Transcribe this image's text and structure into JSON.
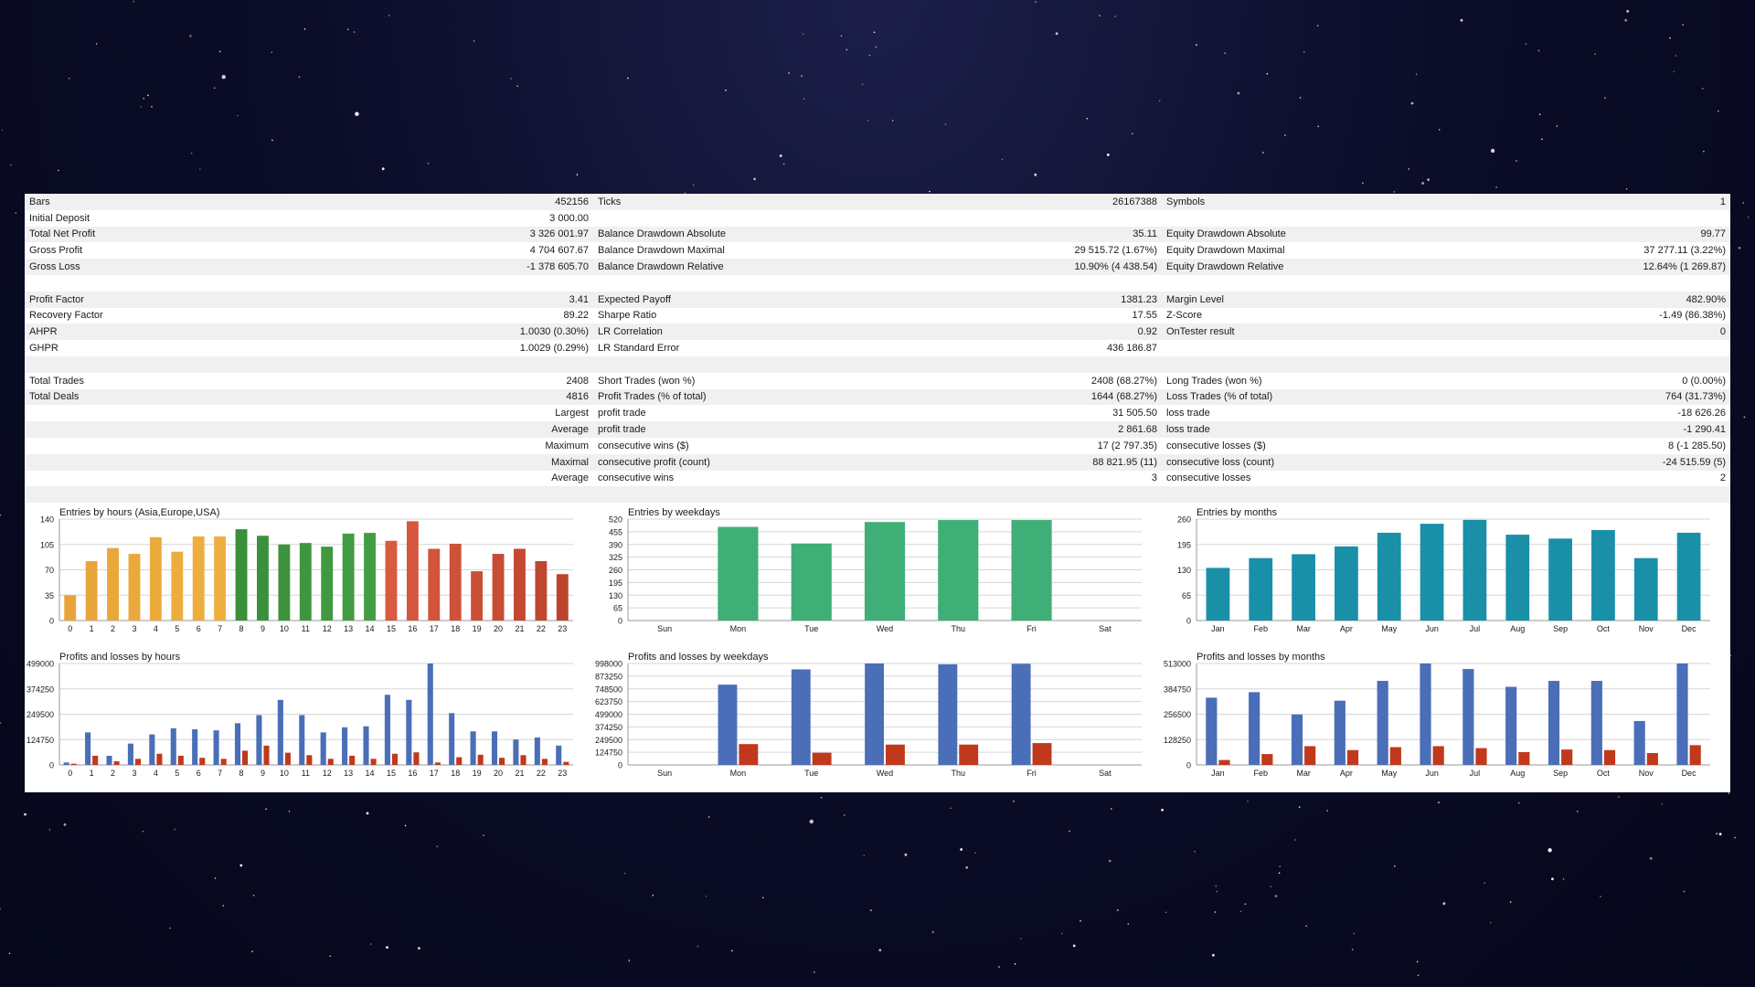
{
  "stats_rows": [
    {
      "shade": true,
      "cells": [
        [
          "Bars",
          "452156"
        ],
        [
          "Ticks",
          "26167388"
        ],
        [
          "Symbols",
          "1"
        ]
      ]
    },
    {
      "shade": false,
      "cells": [
        [
          "Initial Deposit",
          "3 000.00"
        ],
        [
          "",
          ""
        ],
        [
          "",
          ""
        ]
      ]
    },
    {
      "shade": true,
      "cells": [
        [
          "Total Net Profit",
          "3 326 001.97"
        ],
        [
          "Balance Drawdown Absolute",
          "35.11"
        ],
        [
          "Equity Drawdown Absolute",
          "99.77"
        ]
      ]
    },
    {
      "shade": false,
      "cells": [
        [
          "Gross Profit",
          "4 704 607.67"
        ],
        [
          "Balance Drawdown Maximal",
          "29 515.72 (1.67%)"
        ],
        [
          "Equity Drawdown Maximal",
          "37 277.11 (3.22%)"
        ]
      ]
    },
    {
      "shade": true,
      "cells": [
        [
          "Gross Loss",
          "-1 378 605.70"
        ],
        [
          "Balance Drawdown Relative",
          "10.90% (4 438.54)"
        ],
        [
          "Equity Drawdown Relative",
          "12.64% (1 269.87)"
        ]
      ]
    },
    {
      "shade": false,
      "cells": [
        [
          "",
          ""
        ],
        [
          "",
          ""
        ],
        [
          "",
          ""
        ]
      ]
    },
    {
      "shade": true,
      "cells": [
        [
          "Profit Factor",
          "3.41"
        ],
        [
          "Expected Payoff",
          "1381.23"
        ],
        [
          "Margin Level",
          "482.90%"
        ]
      ]
    },
    {
      "shade": false,
      "cells": [
        [
          "Recovery Factor",
          "89.22"
        ],
        [
          "Sharpe Ratio",
          "17.55"
        ],
        [
          "Z-Score",
          "-1.49 (86.38%)"
        ]
      ]
    },
    {
      "shade": true,
      "cells": [
        [
          "AHPR",
          "1.0030 (0.30%)"
        ],
        [
          "LR Correlation",
          "0.92"
        ],
        [
          "OnTester result",
          "0"
        ]
      ]
    },
    {
      "shade": false,
      "cells": [
        [
          "GHPR",
          "1.0029 (0.29%)"
        ],
        [
          "LR Standard Error",
          "436 186.87"
        ],
        [
          "",
          ""
        ]
      ]
    },
    {
      "shade": true,
      "cells": [
        [
          "",
          ""
        ],
        [
          "",
          ""
        ],
        [
          "",
          ""
        ]
      ]
    },
    {
      "shade": false,
      "cells": [
        [
          "Total Trades",
          "2408"
        ],
        [
          "Short Trades (won %)",
          "2408 (68.27%)"
        ],
        [
          "Long Trades (won %)",
          "0 (0.00%)"
        ]
      ]
    },
    {
      "shade": true,
      "cells": [
        [
          "Total Deals",
          "4816"
        ],
        [
          "Profit Trades (% of total)",
          "1644 (68.27%)"
        ],
        [
          "Loss Trades (% of total)",
          "764 (31.73%)"
        ]
      ]
    },
    {
      "shade": false,
      "first_right": true,
      "cells": [
        [
          "Largest",
          ""
        ],
        [
          "profit trade",
          "31 505.50"
        ],
        [
          "loss trade",
          "-18 626.26"
        ]
      ]
    },
    {
      "shade": true,
      "first_right": true,
      "cells": [
        [
          "Average",
          ""
        ],
        [
          "profit trade",
          "2 861.68"
        ],
        [
          "loss trade",
          "-1 290.41"
        ]
      ]
    },
    {
      "shade": false,
      "first_right": true,
      "cells": [
        [
          "Maximum",
          ""
        ],
        [
          "consecutive wins ($)",
          "17 (2 797.35)"
        ],
        [
          "consecutive losses ($)",
          "8 (-1 285.50)"
        ]
      ]
    },
    {
      "shade": true,
      "first_right": true,
      "cells": [
        [
          "Maximal",
          ""
        ],
        [
          "consecutive profit (count)",
          "88 821.95 (11)"
        ],
        [
          "consecutive loss (count)",
          "-24 515.59 (5)"
        ]
      ]
    },
    {
      "shade": false,
      "first_right": true,
      "cells": [
        [
          "Average",
          ""
        ],
        [
          "consecutive wins",
          "3"
        ],
        [
          "consecutive losses",
          "2"
        ]
      ]
    },
    {
      "shade": true,
      "cells": [
        [
          "",
          ""
        ],
        [
          "",
          ""
        ],
        [
          "",
          ""
        ]
      ]
    }
  ],
  "colors": {
    "hours_gradient": [
      "#e8a33a",
      "#f0b13f",
      "#3a8f3a",
      "#44a044",
      "#b8412a",
      "#d95a40"
    ],
    "weekdays_green": "#3fae77",
    "months_teal": "#1a8fa8",
    "profit_blue": "#4a6fb8",
    "loss_red": "#c0391d"
  },
  "chart_data": [
    {
      "id": "entries_hours",
      "type": "bar",
      "title": "Entries by hours (Asia,Europe,USA)",
      "categories": [
        "0",
        "1",
        "2",
        "3",
        "4",
        "5",
        "6",
        "7",
        "8",
        "9",
        "10",
        "11",
        "12",
        "13",
        "14",
        "15",
        "16",
        "17",
        "18",
        "19",
        "20",
        "21",
        "22",
        "23"
      ],
      "values": [
        35,
        82,
        100,
        92,
        115,
        95,
        116,
        116,
        126,
        117,
        105,
        107,
        102,
        120,
        121,
        110,
        137,
        99,
        106,
        68,
        92,
        99,
        82,
        64
      ],
      "yticks": [
        "0",
        "35",
        "70",
        "105",
        "140"
      ],
      "ylim": [
        0,
        140
      ]
    },
    {
      "id": "entries_weekdays",
      "type": "bar",
      "title": "Entries by weekdays",
      "categories": [
        "Sun",
        "Mon",
        "Tue",
        "Wed",
        "Thu",
        "Fri",
        "Sat"
      ],
      "values": [
        0,
        480,
        395,
        505,
        515,
        515,
        0
      ],
      "yticks": [
        "0",
        "65",
        "130",
        "195",
        "260",
        "325",
        "390",
        "455",
        "520"
      ],
      "ylim": [
        0,
        520
      ]
    },
    {
      "id": "entries_months",
      "type": "bar",
      "title": "Entries by months",
      "categories": [
        "Jan",
        "Feb",
        "Mar",
        "Apr",
        "May",
        "Jun",
        "Jul",
        "Aug",
        "Sep",
        "Oct",
        "Nov",
        "Dec"
      ],
      "values": [
        135,
        160,
        170,
        190,
        225,
        248,
        258,
        220,
        210,
        232,
        160,
        225
      ],
      "yticks": [
        "0",
        "65",
        "130",
        "195",
        "260"
      ],
      "ylim": [
        0,
        260
      ]
    },
    {
      "id": "pl_hours",
      "type": "bar",
      "title": "Profits and losses by hours",
      "categories": [
        "0",
        "1",
        "2",
        "3",
        "4",
        "5",
        "6",
        "7",
        "8",
        "9",
        "10",
        "11",
        "12",
        "13",
        "14",
        "15",
        "16",
        "17",
        "18",
        "19",
        "20",
        "21",
        "22",
        "23"
      ],
      "series": [
        {
          "values": [
            12000,
            160000,
            45000,
            105000,
            150000,
            180000,
            175000,
            170000,
            205000,
            245000,
            320000,
            245000,
            160000,
            185000,
            190000,
            345000,
            320000,
            499000,
            255000,
            165000,
            165000,
            125000,
            135000,
            95000
          ]
        },
        {
          "values": [
            6000,
            45000,
            18000,
            30000,
            55000,
            45000,
            35000,
            30000,
            70000,
            95000,
            60000,
            48000,
            30000,
            45000,
            30000,
            55000,
            62000,
            12000,
            38000,
            50000,
            35000,
            48000,
            30000,
            15000
          ]
        }
      ],
      "yticks": [
        "0",
        "124750",
        "249500",
        "374250",
        "499000"
      ],
      "ylim": [
        0,
        499000
      ]
    },
    {
      "id": "pl_weekdays",
      "type": "bar",
      "title": "Profits and losses by weekdays",
      "categories": [
        "Sun",
        "Mon",
        "Tue",
        "Wed",
        "Thu",
        "Fri",
        "Sat"
      ],
      "series": [
        {
          "values": [
            0,
            790000,
            940000,
            998000,
            990000,
            995000,
            0
          ]
        },
        {
          "values": [
            0,
            205000,
            120000,
            200000,
            200000,
            215000,
            0
          ]
        }
      ],
      "yticks": [
        "0",
        "124750",
        "249500",
        "374250",
        "499000",
        "623750",
        "748500",
        "873250",
        "998000"
      ],
      "ylim": [
        0,
        998000
      ]
    },
    {
      "id": "pl_months",
      "type": "bar",
      "title": "Profits and losses by months",
      "categories": [
        "Jan",
        "Feb",
        "Mar",
        "Apr",
        "May",
        "Jun",
        "Jul",
        "Aug",
        "Sep",
        "Oct",
        "Nov",
        "Dec"
      ],
      "series": [
        {
          "values": [
            340000,
            368000,
            255000,
            325000,
            425000,
            513000,
            485000,
            395000,
            425000,
            425000,
            222000,
            513000
          ]
        },
        {
          "values": [
            25000,
            55000,
            95000,
            75000,
            90000,
            95000,
            85000,
            65000,
            78000,
            75000,
            60000,
            100000
          ]
        }
      ],
      "yticks": [
        "0",
        "128250",
        "256500",
        "384750",
        "513000"
      ],
      "ylim": [
        0,
        513000
      ]
    }
  ]
}
